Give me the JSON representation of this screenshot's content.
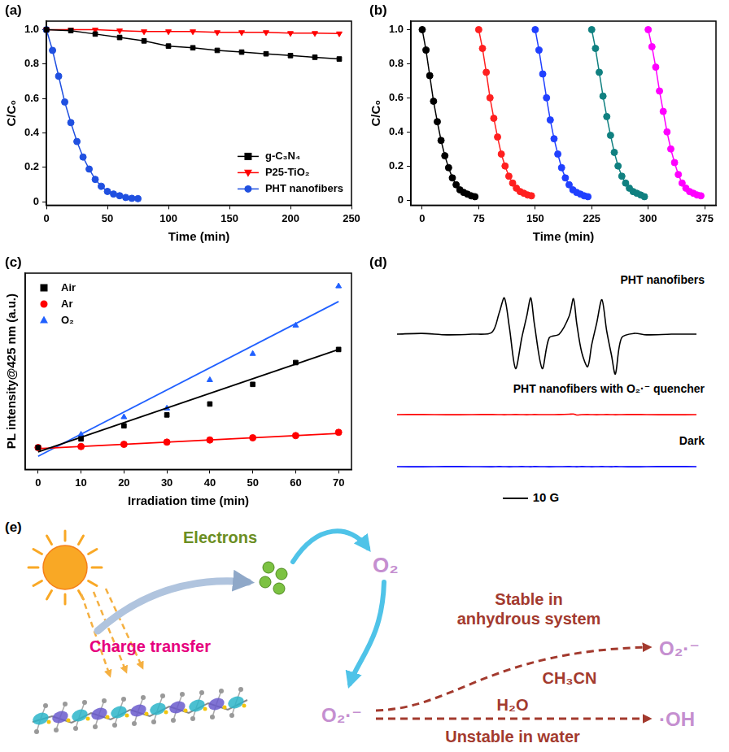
{
  "chart_data": [
    {
      "panel": "(a)",
      "type": "line",
      "x_label": "Time (min)",
      "y_label": "C/C₀",
      "xlim": [
        0,
        250
      ],
      "xticks": [
        0,
        50,
        100,
        150,
        200,
        250
      ],
      "ylim": [
        -0.02,
        1.05
      ],
      "yticks": [
        0,
        0.2,
        0.4,
        0.6,
        0.8,
        {
          "value": 1,
          "label": "1.0"
        }
      ],
      "grid": false,
      "legend": "lower right",
      "series": [
        {
          "name": "g-C₃N₄",
          "color": "#000000",
          "marker": "square",
          "x": [
            0,
            20,
            40,
            60,
            80,
            100,
            120,
            140,
            160,
            180,
            200,
            220,
            240
          ],
          "values": [
            1.0,
            0.995,
            0.975,
            0.955,
            0.935,
            0.905,
            0.895,
            0.88,
            0.87,
            0.86,
            0.85,
            0.84,
            0.83
          ]
        },
        {
          "name": "P25-TiO₂",
          "color": "#ff0000",
          "marker": "triangle-down",
          "x": [
            0,
            20,
            40,
            60,
            80,
            100,
            120,
            140,
            160,
            180,
            200,
            220,
            240
          ],
          "values": [
            1.0,
            1.0,
            1.0,
            0.995,
            0.99,
            0.99,
            0.99,
            0.985,
            0.985,
            0.985,
            0.98,
            0.98,
            0.978
          ]
        },
        {
          "name": "PHT nanofibers",
          "color": "#2050e0",
          "marker": "circle",
          "x": [
            0,
            5,
            10,
            15,
            20,
            25,
            30,
            35,
            40,
            45,
            50,
            55,
            60,
            65,
            70,
            75
          ],
          "values": [
            1.0,
            0.88,
            0.73,
            0.58,
            0.46,
            0.35,
            0.26,
            0.19,
            0.13,
            0.09,
            0.06,
            0.045,
            0.035,
            0.025,
            0.02,
            0.018
          ]
        }
      ]
    },
    {
      "panel": "(b)",
      "type": "line",
      "x_label": "Time (min)",
      "y_label": "C/C₀",
      "xlim": [
        -15,
        390
      ],
      "xticks": [
        0,
        75,
        150,
        225,
        300,
        375
      ],
      "ylim": [
        -0.03,
        1.05
      ],
      "yticks": [
        0,
        0.2,
        0.4,
        0.6,
        0.8,
        {
          "value": 1,
          "label": "1.0"
        }
      ],
      "grid": false,
      "series": [
        {
          "color": "#000000",
          "marker": "circle",
          "x": [
            0,
            5,
            10,
            15,
            20,
            25,
            30,
            35,
            40,
            45,
            50,
            55,
            60,
            65,
            70
          ],
          "values": [
            1.0,
            0.88,
            0.73,
            0.58,
            0.46,
            0.35,
            0.26,
            0.19,
            0.13,
            0.09,
            0.06,
            0.045,
            0.035,
            0.025,
            0.02
          ]
        },
        {
          "color": "#ff2020",
          "marker": "circle",
          "x": [
            75,
            80,
            85,
            90,
            95,
            100,
            105,
            110,
            115,
            120,
            125,
            130,
            135,
            140,
            145
          ],
          "values": [
            1.0,
            0.89,
            0.75,
            0.6,
            0.48,
            0.37,
            0.27,
            0.2,
            0.14,
            0.1,
            0.07,
            0.05,
            0.04,
            0.03,
            0.025
          ]
        },
        {
          "color": "#2040ff",
          "marker": "circle",
          "x": [
            150,
            155,
            160,
            165,
            170,
            175,
            180,
            185,
            190,
            195,
            200,
            205,
            210,
            215,
            220
          ],
          "values": [
            1.0,
            0.88,
            0.74,
            0.6,
            0.47,
            0.36,
            0.27,
            0.19,
            0.13,
            0.09,
            0.06,
            0.045,
            0.035,
            0.025,
            0.02
          ]
        },
        {
          "color": "#108080",
          "marker": "circle",
          "x": [
            225,
            230,
            235,
            240,
            245,
            250,
            255,
            260,
            265,
            270,
            275,
            280,
            285,
            290,
            295
          ],
          "values": [
            1.0,
            0.89,
            0.75,
            0.61,
            0.49,
            0.38,
            0.28,
            0.2,
            0.14,
            0.1,
            0.07,
            0.05,
            0.04,
            0.03,
            0.02
          ]
        },
        {
          "color": "#ff00ff",
          "marker": "circle",
          "x": [
            300,
            305,
            310,
            315,
            320,
            325,
            330,
            335,
            340,
            345,
            350,
            355,
            360,
            365,
            370
          ],
          "values": [
            1.0,
            0.9,
            0.78,
            0.64,
            0.52,
            0.4,
            0.3,
            0.22,
            0.15,
            0.1,
            0.07,
            0.05,
            0.04,
            0.03,
            0.025
          ]
        }
      ]
    },
    {
      "panel": "(c)",
      "type": "scatter",
      "x_label": "Irradiation time (min)",
      "y_label": "PL intensity@425 nm (a.u.)",
      "xlim": [
        -3,
        73
      ],
      "xticks": [
        0,
        10,
        20,
        30,
        40,
        50,
        60,
        70
      ],
      "ylim": [
        0,
        9
      ],
      "tick_labels": "x",
      "grid": false,
      "legend": "upper left",
      "series": [
        {
          "name": "Air",
          "color": "#000000",
          "marker": "square",
          "line_style": "none",
          "x": [
            0,
            10,
            20,
            30,
            40,
            50,
            60,
            70
          ],
          "values": [
            1.0,
            1.4,
            2.0,
            2.5,
            3.0,
            3.9,
            4.9,
            5.5
          ],
          "fit": {
            "x": [
              0,
              70
            ],
            "values": [
              0.8,
              5.5
            ]
          }
        },
        {
          "name": "Ar",
          "color": "#ff0000",
          "marker": "circle",
          "line_style": "none",
          "x": [
            0,
            10,
            20,
            30,
            40,
            50,
            60,
            70
          ],
          "values": [
            1.0,
            1.05,
            1.15,
            1.25,
            1.35,
            1.45,
            1.55,
            1.7
          ],
          "fit": {
            "x": [
              0,
              70
            ],
            "values": [
              0.95,
              1.65
            ]
          }
        },
        {
          "name": "O₂",
          "color": "#2060ff",
          "marker": "triangle",
          "line_style": "none",
          "x": [
            0,
            10,
            20,
            30,
            40,
            50,
            60,
            70
          ],
          "values": [
            1.0,
            1.6,
            2.4,
            2.8,
            4.1,
            5.3,
            6.6,
            8.4
          ],
          "fit": {
            "x": [
              0,
              70
            ],
            "values": [
              0.6,
              7.7
            ]
          }
        }
      ]
    },
    {
      "panel": "(d)",
      "type": "line",
      "tick_labels": false,
      "grid": false,
      "x": [
        0,
        10,
        20,
        30,
        38,
        41,
        43,
        45,
        47.5,
        50,
        52,
        53.6,
        55,
        58.2,
        61,
        65,
        69,
        70.7,
        72,
        74,
        76.4,
        78,
        80,
        82.1,
        84,
        86,
        87.5,
        90,
        95,
        100,
        110,
        120
      ],
      "series": [
        {
          "name": "PHT nanofibers",
          "color": "#000000",
          "values": [
            0,
            0.02,
            -0.02,
            0,
            0.05,
            0.6,
            1.0,
            0.2,
            -0.95,
            -0.1,
            0.5,
            1.0,
            0.3,
            -0.95,
            -0.1,
            0,
            0.5,
            0.98,
            0.3,
            -0.5,
            -0.9,
            -0.3,
            0.3,
            0.95,
            0.1,
            -0.6,
            -1.1,
            -0.1,
            0.02,
            -0.02,
            0,
            0
          ]
        },
        {
          "name": "PHT nanofibers with O₂·⁻ quencher",
          "color": "#ff0000",
          "values": [
            0,
            0.01,
            -0.01,
            0,
            0.01,
            0,
            -0.01,
            0,
            0.01,
            0,
            -0.01,
            0,
            0.01,
            0,
            0,
            0.01,
            0.03,
            0.05,
            -0.03,
            0,
            0.01,
            0,
            -0.01,
            0,
            0.01,
            0,
            -0.01,
            0,
            0.01,
            0,
            -0.01,
            0
          ]
        },
        {
          "name": "Dark",
          "color": "#0000ff",
          "values": [
            0,
            -0.01,
            0.01,
            0,
            -0.01,
            0.01,
            0,
            -0.01,
            0,
            0.01,
            0,
            -0.01,
            0.01,
            0,
            -0.01,
            0,
            0.01,
            0,
            -0.01,
            0.01,
            0,
            -0.01,
            0,
            0.01,
            0,
            -0.01,
            0.01,
            0,
            -0.01,
            0,
            0.01,
            0
          ]
        }
      ],
      "scale_bar": {
        "value": 10,
        "label": "10 G"
      }
    }
  ],
  "diagram": {
    "panel": "(e)",
    "texts": {
      "electrons": "Electrons",
      "charge_transfer": "Charge transfer",
      "o2": "O₂",
      "o2_radical_left": "O₂·⁻",
      "stable": "Stable in anhydrous system",
      "ch3cn": "CH₃CN",
      "h2o": "H₂O",
      "unstable": "Unstable in water",
      "o2_radical_right": "O₂·⁻",
      "oh": "·OH"
    }
  }
}
